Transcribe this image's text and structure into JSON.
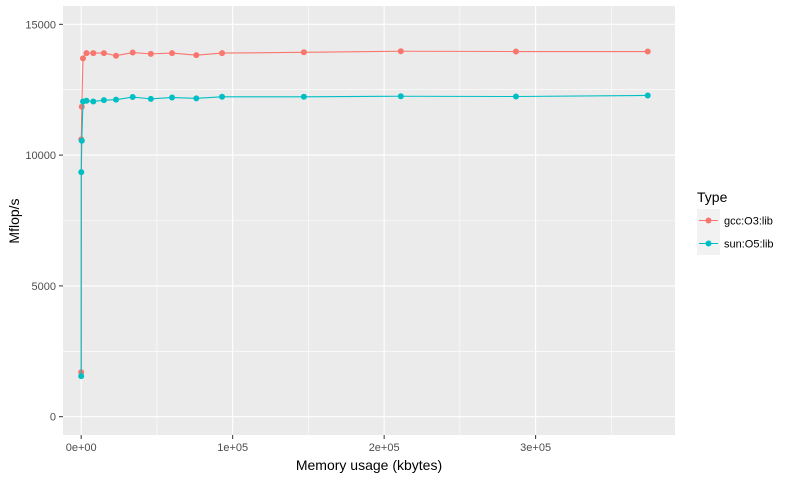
{
  "chart_data": {
    "type": "line",
    "xlabel": "Memory usage (kbytes)",
    "ylabel": "Mflop/s",
    "xlim": [
      -12000,
      392000
    ],
    "ylim": [
      -700,
      15700
    ],
    "x_ticks": [
      0,
      100000,
      200000,
      300000
    ],
    "x_tick_labels": [
      "0e+00",
      "1e+05",
      "2e+05",
      "3e+05"
    ],
    "y_ticks": [
      0,
      5000,
      10000,
      15000
    ],
    "y_tick_labels": [
      "0",
      "5000",
      "10000",
      "15000"
    ],
    "grid": true,
    "legend": {
      "title": "Type",
      "position": "right"
    },
    "series": [
      {
        "name": "gcc:O3:lib",
        "color": "#F8766D",
        "x": [
          10,
          70,
          400,
          1200,
          3500,
          8000,
          15000,
          23000,
          34000,
          46000,
          60000,
          76000,
          93000,
          147000,
          211000,
          287000,
          374000
        ],
        "y": [
          1700,
          10600,
          11850,
          13700,
          13900,
          13900,
          13900,
          13800,
          13920,
          13870,
          13900,
          13820,
          13900,
          13930,
          13970,
          13960,
          13960
        ]
      },
      {
        "name": "sun:O5:lib",
        "color": "#00BFC4",
        "x": [
          10,
          70,
          400,
          1200,
          3500,
          8000,
          15000,
          23000,
          34000,
          46000,
          60000,
          76000,
          93000,
          147000,
          211000,
          287000,
          374000
        ],
        "y": [
          1550,
          9350,
          10550,
          12050,
          12080,
          12050,
          12100,
          12120,
          12220,
          12150,
          12200,
          12170,
          12230,
          12230,
          12250,
          12240,
          12280
        ]
      }
    ]
  }
}
